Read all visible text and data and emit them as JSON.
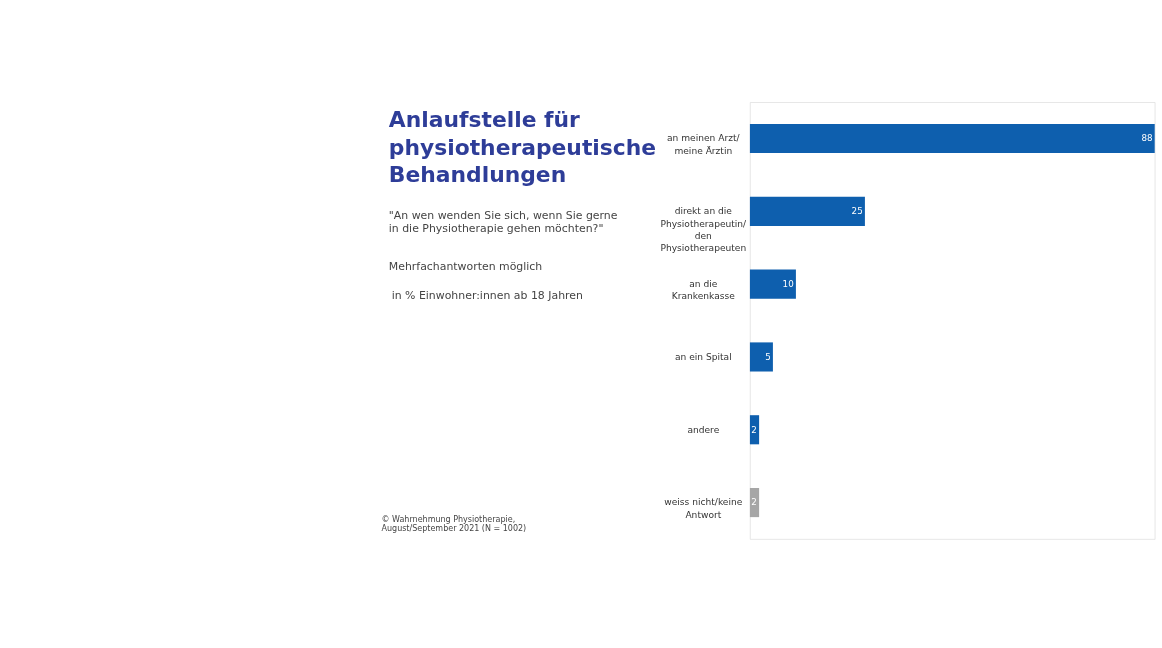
{
  "chart_data": {
    "type": "bar",
    "orientation": "horizontal",
    "title": "Anlaufstelle für physiotherapeutische Behandlungen",
    "subtitle": "\"An wen wenden Sie sich, wenn Sie gerne in die Physiotherapie gehen möchten?\"",
    "categories": [
      "an meinen Arzt/ meine Ärztin",
      "direkt an die Physiotherapeutin/ den Physiotherapeuten",
      "an die Krankenkasse",
      "an ein Spital",
      "andere",
      "weiss nicht/keine Antwort"
    ],
    "values": [
      88,
      25,
      10,
      5,
      2,
      2
    ],
    "colors": [
      "#0e5fae",
      "#0e5fae",
      "#0e5fae",
      "#0e5fae",
      "#0e5fae",
      "#a6a6a6"
    ],
    "data_labels": true,
    "annotations": [
      "Mehrfachantworten möglich",
      "in % Einwohner:innen ab 18 Jahren",
      "© Wahrnehmung Physiotherapie, August/September 2021 (N = 1002)"
    ]
  }
}
